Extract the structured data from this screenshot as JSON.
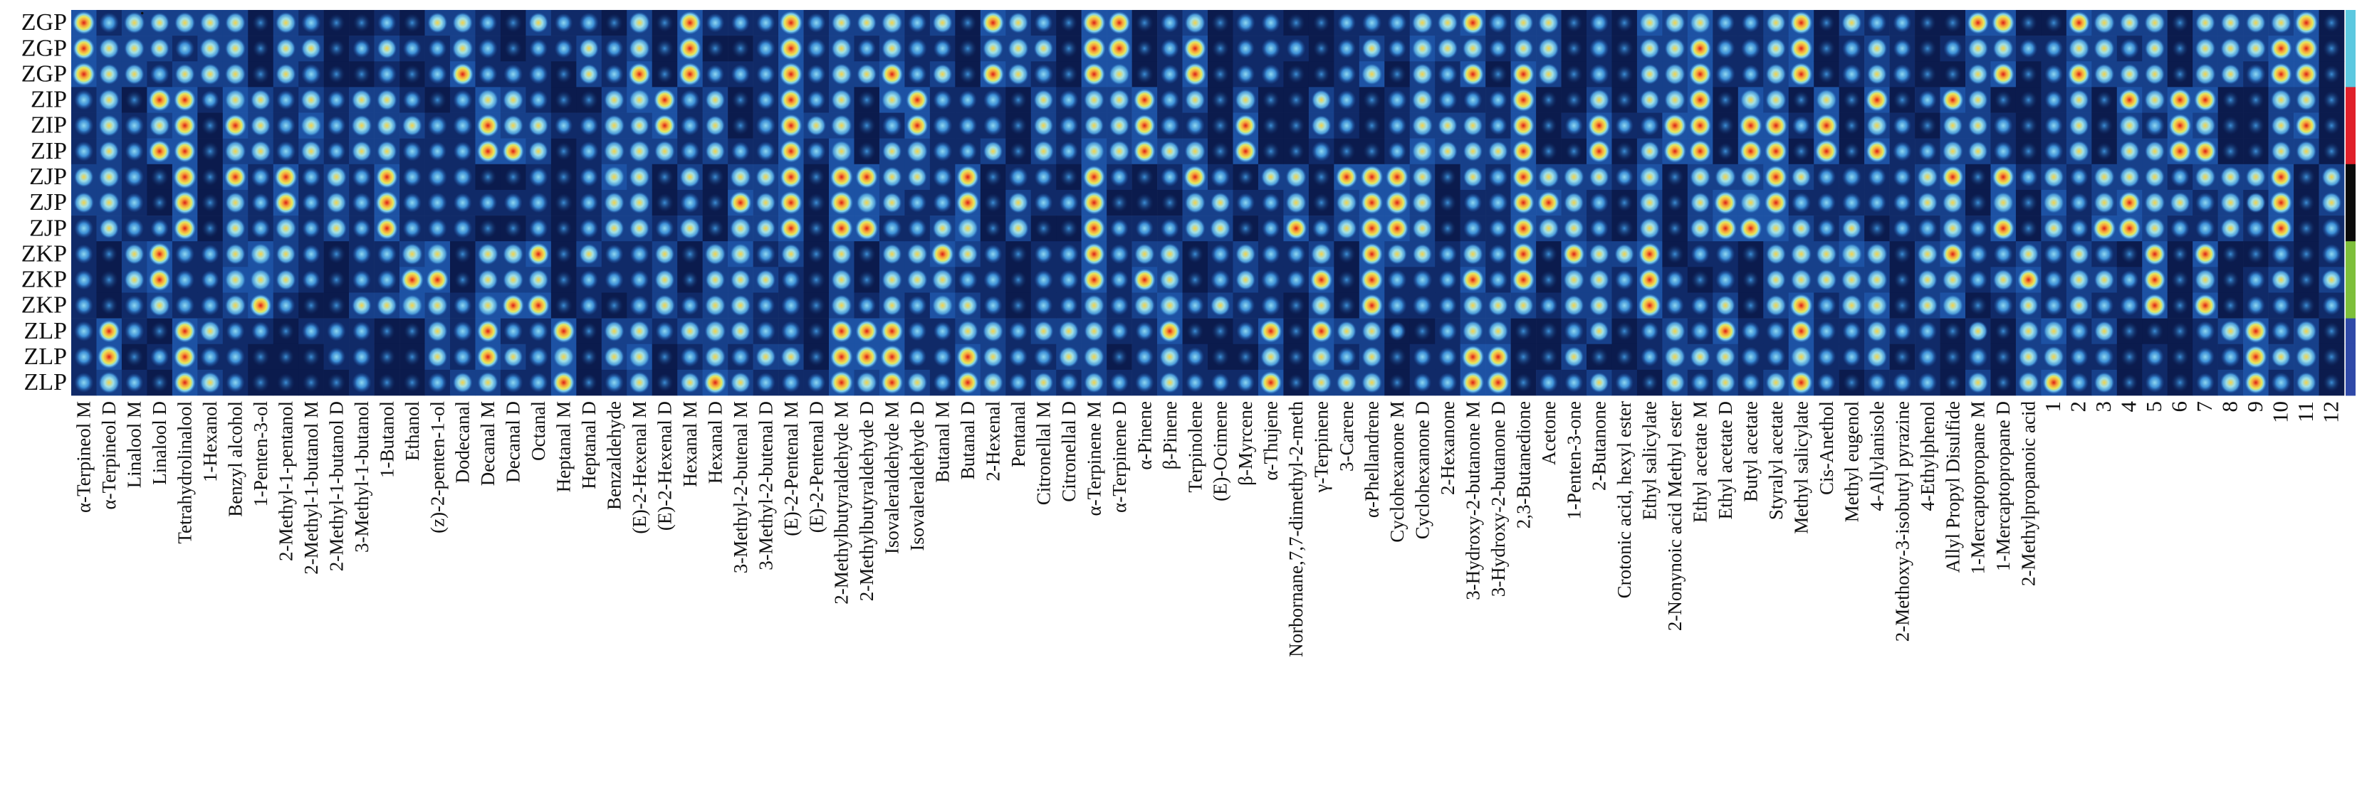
{
  "chart_data": {
    "type": "heatmap",
    "title": "",
    "rows": [
      "ZGP",
      "ZGP",
      "ZGP",
      "ZIP",
      "ZIP",
      "ZIP",
      "ZJP",
      "ZJP",
      "ZJP",
      "ZKP",
      "ZKP",
      "ZKP",
      "ZLP",
      "ZLP",
      "ZLP"
    ],
    "group_colors": {
      "ZGP": "#5bc8e0",
      "ZIP": "#e0202a",
      "ZJP": "#0a0a0a",
      "ZKP": "#7dbf3a",
      "ZLP": "#2f49a8"
    },
    "columns": [
      "α-Terpineol M",
      "α-Terpineol D",
      "Linalool M",
      "Linalool D",
      "Tetrahydrolinalool",
      "1-Hexanol",
      "Benzyl alcohol",
      "1-Penten-3-ol",
      "2-Methyl-1-pentanol",
      "2-Methyl-1-butanol M",
      "2-Methyl-1-butanol D",
      "3-Methyl-1-butanol",
      "1-Butanol",
      "Ethanol",
      "(z)-2-penten-1-ol",
      "Dodecanal",
      "Decanal M",
      "Decanal D",
      "Octanal",
      "Heptanal M",
      "Heptanal D",
      "Benzaldehyde",
      "(E)-2-Hexenal M",
      "(E)-2-Hexenal D",
      "Hexanal M",
      "Hexanal D",
      "3-Methyl-2-butenal M",
      "3-Methyl-2-butenal D",
      "(E)-2-Pentenal M",
      "(E)-2-Pentenal D",
      "2-Methylbutyraldehyde M",
      "2-Methylbutyraldehyde D",
      "Isovaleraldehyde M",
      "Isovaleraldehyde D",
      "Butanal M",
      "Butanal D",
      "2-Hexenal",
      "Pentanal",
      "Citronellal M",
      "Citronellal D",
      "α-Terpinene M",
      "α-Terpinene D",
      "α-Pinene",
      "β-Pinene",
      "Terpinolene",
      "(E)-Ocimene",
      "β-Myrcene",
      "α-Thujene",
      "Norbornane,7,7-dimethyl-2-meth",
      "γ-Terpinene",
      "3-Carene",
      "α-Phellandrene",
      "Cyclohexanone M",
      "Cyclohexanone D",
      "2-Hexanone",
      "3-Hydroxy-2-butanone M",
      "3-Hydroxy-2-butanone D",
      "2,3-Butanedione",
      "Acetone",
      "1-Penten-3-one",
      "2-Butanone",
      "Crotonic acid, hexyl ester",
      "Ethyl salicylate",
      "2-Nonynoic acid Methyl ester",
      "Ethyl acetate M",
      "Ethyl acetate D",
      "Butyl acetate",
      "Styralyl acetate",
      "Methyl salicylate",
      "Cis-Anethol",
      "Methyl eugenol",
      "4-Allylanisole",
      "2-Methoxy-3-isobutyl pyrazine",
      "4-Ethylphenol",
      "Allyl Propyl Disulfide",
      "1-Mercaptopropane M",
      "1-Mercaptopropane D",
      "2-Methylpropanoic acid"
    ],
    "numbered_columns": [
      "1",
      "2",
      "3",
      "4",
      "5",
      "6",
      "7",
      "8",
      "9",
      "10",
      "11",
      "12"
    ],
    "colormap": [
      "#0a1a4a",
      "#1a4fa0",
      "#3d8fd6",
      "#7fd0f0",
      "#e8e85a",
      "#f7a23a",
      "#d91e18"
    ],
    "value_range": [
      0,
      1
    ],
    "note_mark": "."
  }
}
